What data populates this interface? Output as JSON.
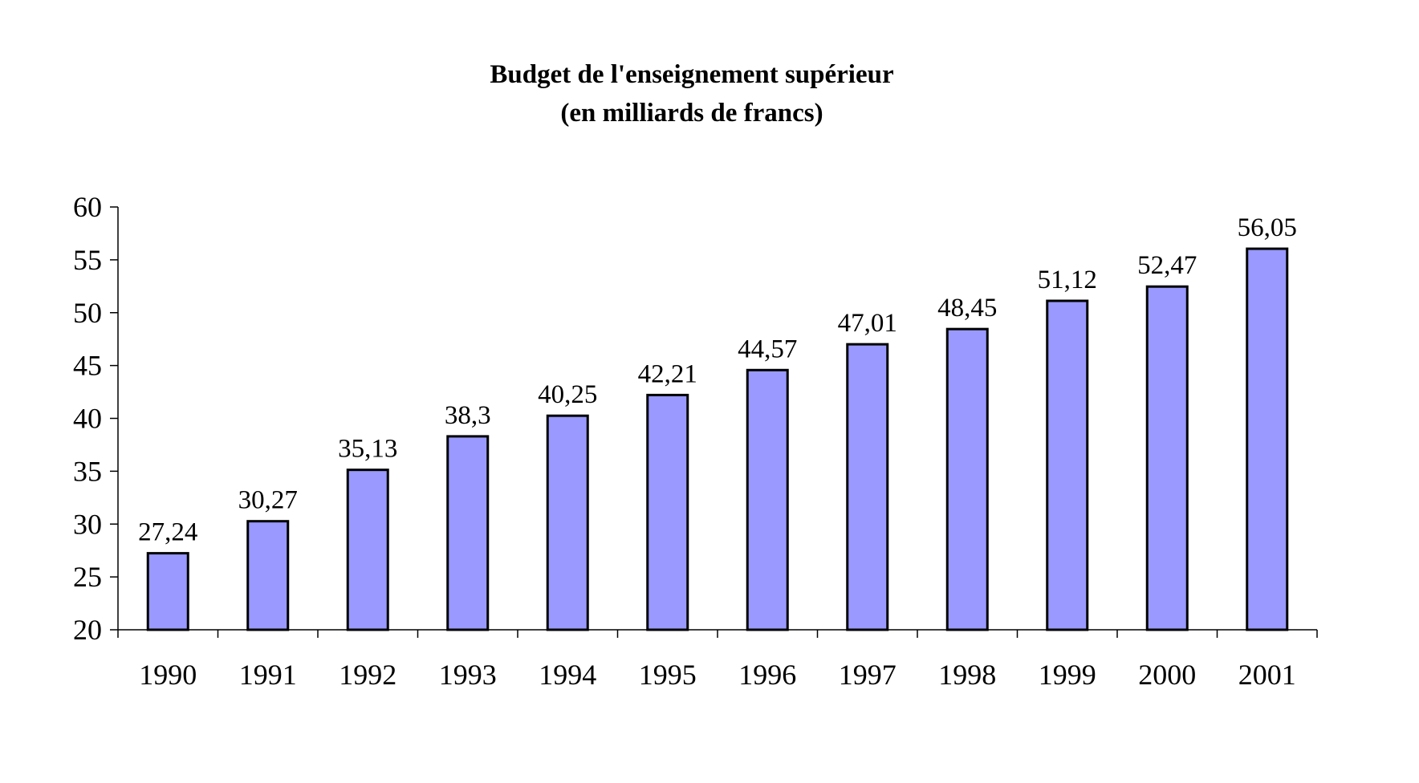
{
  "chart_data": {
    "type": "bar",
    "title": "Budget de l'enseignement supérieur",
    "subtitle": "(en milliards de francs)",
    "categories": [
      "1990",
      "1991",
      "1992",
      "1993",
      "1994",
      "1995",
      "1996",
      "1997",
      "1998",
      "1999",
      "2000",
      "2001"
    ],
    "values": [
      27.24,
      30.27,
      35.13,
      38.3,
      40.25,
      42.21,
      44.57,
      47.01,
      48.45,
      51.12,
      52.47,
      56.05
    ],
    "value_labels": [
      "27,24",
      "30,27",
      "35,13",
      "38,3",
      "40,25",
      "42,21",
      "44,57",
      "47,01",
      "48,45",
      "51,12",
      "52,47",
      "56,05"
    ],
    "ylim": [
      20,
      60
    ],
    "yticks": [
      20,
      25,
      30,
      35,
      40,
      45,
      50,
      55,
      60
    ],
    "xlabel": "",
    "ylabel": "",
    "grid": false,
    "legend": "none",
    "bar_color": "#9999ff",
    "bar_edge_color": "#000000"
  }
}
